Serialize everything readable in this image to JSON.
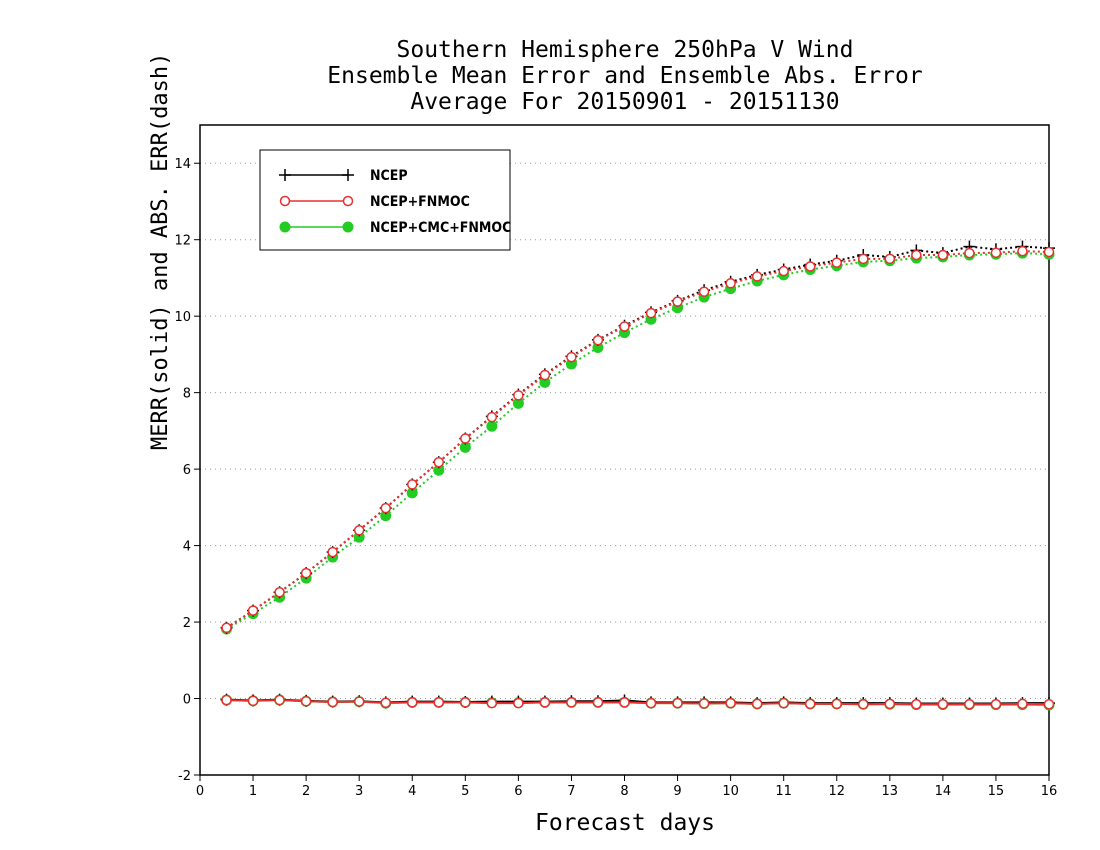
{
  "chart_data": {
    "type": "line",
    "title": [
      "Southern Hemisphere 250hPa V Wind",
      "Ensemble Mean Error and Ensemble Abs. Error",
      "Average For 20150901 - 20151130"
    ],
    "xlabel": "Forecast days",
    "ylabel": "MERR(solid) and ABS. ERR(dash)",
    "xlim": [
      0,
      16
    ],
    "ylim": [
      -2,
      15
    ],
    "xticks": [
      0,
      1,
      2,
      3,
      4,
      5,
      6,
      7,
      8,
      9,
      10,
      11,
      12,
      13,
      14,
      15,
      16
    ],
    "yticks": [
      -2,
      0,
      2,
      4,
      6,
      8,
      10,
      12,
      14
    ],
    "grid": "horizontal dotted",
    "legend_position": "top-left",
    "x": [
      0.5,
      1,
      1.5,
      2,
      2.5,
      3,
      3.5,
      4,
      4.5,
      5,
      5.5,
      6,
      6.5,
      7,
      7.5,
      8,
      8.5,
      9,
      9.5,
      10,
      10.5,
      11,
      11.5,
      12,
      12.5,
      13,
      13.5,
      14,
      14.5,
      15,
      15.5,
      16
    ],
    "series": [
      {
        "name": "NCEP",
        "color": "#000000",
        "marker": "plus",
        "abs_err": [
          1.85,
          2.3,
          2.78,
          3.28,
          3.83,
          4.4,
          4.98,
          5.6,
          6.18,
          6.8,
          7.38,
          7.95,
          8.48,
          8.95,
          9.38,
          9.75,
          10.1,
          10.4,
          10.68,
          10.9,
          11.08,
          11.22,
          11.35,
          11.45,
          11.6,
          11.55,
          11.72,
          11.65,
          11.82,
          11.75,
          11.82,
          11.78
        ],
        "mean_err": [
          -0.03,
          -0.05,
          -0.03,
          -0.06,
          -0.08,
          -0.07,
          -0.1,
          -0.08,
          -0.08,
          -0.09,
          -0.08,
          -0.08,
          -0.08,
          -0.07,
          -0.07,
          -0.05,
          -0.1,
          -0.1,
          -0.1,
          -0.1,
          -0.12,
          -0.1,
          -0.12,
          -0.12,
          -0.12,
          -0.12,
          -0.13,
          -0.13,
          -0.13,
          -0.13,
          -0.12,
          -0.12
        ]
      },
      {
        "name": "NCEP+FNMOC",
        "color": "#e83030",
        "marker": "open-circle",
        "abs_err": [
          1.85,
          2.3,
          2.78,
          3.28,
          3.83,
          4.4,
          4.98,
          5.6,
          6.18,
          6.8,
          7.36,
          7.93,
          8.46,
          8.93,
          9.37,
          9.73,
          10.08,
          10.38,
          10.64,
          10.86,
          11.04,
          11.18,
          11.3,
          11.4,
          11.5,
          11.5,
          11.6,
          11.6,
          11.65,
          11.66,
          11.7,
          11.68
        ],
        "mean_err": [
          -0.04,
          -0.06,
          -0.04,
          -0.07,
          -0.09,
          -0.08,
          -0.11,
          -0.1,
          -0.1,
          -0.1,
          -0.12,
          -0.12,
          -0.1,
          -0.1,
          -0.1,
          -0.1,
          -0.12,
          -0.12,
          -0.13,
          -0.12,
          -0.14,
          -0.12,
          -0.14,
          -0.14,
          -0.15,
          -0.14,
          -0.15,
          -0.15,
          -0.15,
          -0.15,
          -0.14,
          -0.15
        ]
      },
      {
        "name": "NCEP+CMC+FNMOC",
        "color": "#22cc22",
        "marker": "filled-circle",
        "abs_err": [
          1.82,
          2.22,
          2.65,
          3.15,
          3.7,
          4.22,
          4.78,
          5.38,
          5.97,
          6.57,
          7.12,
          7.72,
          8.27,
          8.75,
          9.18,
          9.57,
          9.92,
          10.22,
          10.5,
          10.72,
          10.92,
          11.08,
          11.22,
          11.32,
          11.42,
          11.45,
          11.52,
          11.55,
          11.6,
          11.62,
          11.65,
          11.62
        ],
        "mean_err": [
          -0.04,
          -0.06,
          -0.04,
          -0.07,
          -0.09,
          -0.08,
          -0.12,
          -0.1,
          -0.1,
          -0.1,
          -0.11,
          -0.11,
          -0.1,
          -0.1,
          -0.1,
          -0.1,
          -0.12,
          -0.12,
          -0.13,
          -0.12,
          -0.14,
          -0.12,
          -0.14,
          -0.14,
          -0.15,
          -0.15,
          -0.16,
          -0.16,
          -0.16,
          -0.16,
          -0.16,
          -0.17
        ]
      }
    ]
  }
}
